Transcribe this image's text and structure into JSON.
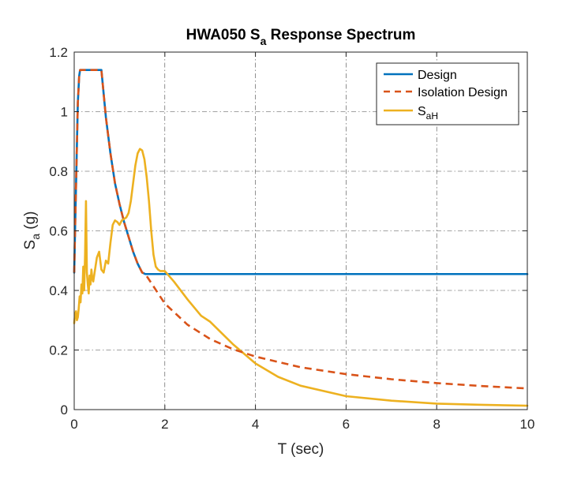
{
  "chart_data": {
    "type": "line",
    "title": {
      "main": "HWA050 S",
      "sub": "a",
      "rest": " Response Spectrum"
    },
    "xlabel": "T (sec)",
    "ylabel": {
      "main": "S",
      "sub": "a",
      "rest": " (g)"
    },
    "xlim": [
      0,
      10
    ],
    "ylim": [
      0,
      1.2
    ],
    "xticks": [
      0,
      2,
      4,
      6,
      8,
      10
    ],
    "yticks": [
      0,
      0.2,
      0.4,
      0.6,
      0.8,
      1,
      1.2
    ],
    "xtick_labels": [
      "0",
      "2",
      "4",
      "6",
      "8",
      "10"
    ],
    "ytick_labels": [
      "0",
      "0.2",
      "0.4",
      "0.6",
      "0.8",
      "1",
      "1.2"
    ],
    "grid": true,
    "legend_position": "top-right",
    "series": [
      {
        "name": "Design",
        "color": "#0072BD",
        "style": "solid",
        "x": [
          0,
          0.02,
          0.05,
          0.08,
          0.11,
          0.13,
          0.6,
          0.7,
          0.8,
          0.9,
          1.0,
          1.1,
          1.2,
          1.3,
          1.4,
          1.5,
          1.57,
          10
        ],
        "y": [
          0.46,
          0.61,
          0.82,
          1.03,
          1.12,
          1.14,
          1.14,
          0.98,
          0.86,
          0.76,
          0.69,
          0.63,
          0.58,
          0.53,
          0.49,
          0.46,
          0.455,
          0.455
        ]
      },
      {
        "name": "Isolation Design",
        "color": "#D95319",
        "style": "dashed",
        "x": [
          0,
          0.02,
          0.05,
          0.08,
          0.11,
          0.13,
          0.6,
          0.7,
          0.8,
          0.9,
          1.0,
          1.1,
          1.2,
          1.3,
          1.4,
          1.5,
          1.57,
          2,
          2.5,
          3,
          3.5,
          4,
          5,
          6,
          7,
          8,
          9,
          10
        ],
        "y": [
          0.46,
          0.61,
          0.82,
          1.03,
          1.12,
          1.14,
          1.14,
          0.98,
          0.86,
          0.76,
          0.69,
          0.63,
          0.58,
          0.53,
          0.49,
          0.46,
          0.455,
          0.356,
          0.285,
          0.237,
          0.203,
          0.178,
          0.142,
          0.119,
          0.102,
          0.089,
          0.079,
          0.071
        ]
      },
      {
        "name": "S",
        "name_sub": "aH",
        "color": "#EDB120",
        "style": "solid",
        "x": [
          0,
          0.02,
          0.04,
          0.06,
          0.08,
          0.1,
          0.12,
          0.14,
          0.16,
          0.18,
          0.2,
          0.22,
          0.24,
          0.26,
          0.28,
          0.3,
          0.32,
          0.34,
          0.36,
          0.38,
          0.4,
          0.42,
          0.45,
          0.5,
          0.55,
          0.6,
          0.65,
          0.7,
          0.75,
          0.8,
          0.85,
          0.9,
          0.95,
          1.0,
          1.05,
          1.1,
          1.15,
          1.2,
          1.25,
          1.3,
          1.35,
          1.4,
          1.45,
          1.5,
          1.55,
          1.6,
          1.65,
          1.7,
          1.75,
          1.8,
          1.85,
          1.9,
          2.0,
          2.2,
          2.5,
          2.8,
          3.0,
          3.5,
          4.0,
          4.5,
          5.0,
          6.0,
          7.0,
          8.0,
          9.0,
          10.0
        ],
        "y": [
          0.29,
          0.32,
          0.33,
          0.3,
          0.31,
          0.34,
          0.38,
          0.36,
          0.42,
          0.39,
          0.48,
          0.4,
          0.52,
          0.7,
          0.46,
          0.42,
          0.39,
          0.45,
          0.42,
          0.47,
          0.44,
          0.43,
          0.46,
          0.51,
          0.53,
          0.47,
          0.46,
          0.5,
          0.49,
          0.56,
          0.62,
          0.635,
          0.63,
          0.62,
          0.635,
          0.64,
          0.645,
          0.66,
          0.7,
          0.76,
          0.82,
          0.86,
          0.875,
          0.87,
          0.84,
          0.78,
          0.7,
          0.6,
          0.52,
          0.48,
          0.47,
          0.465,
          0.465,
          0.43,
          0.37,
          0.315,
          0.295,
          0.22,
          0.155,
          0.11,
          0.08,
          0.045,
          0.03,
          0.02,
          0.016,
          0.013
        ]
      }
    ]
  }
}
